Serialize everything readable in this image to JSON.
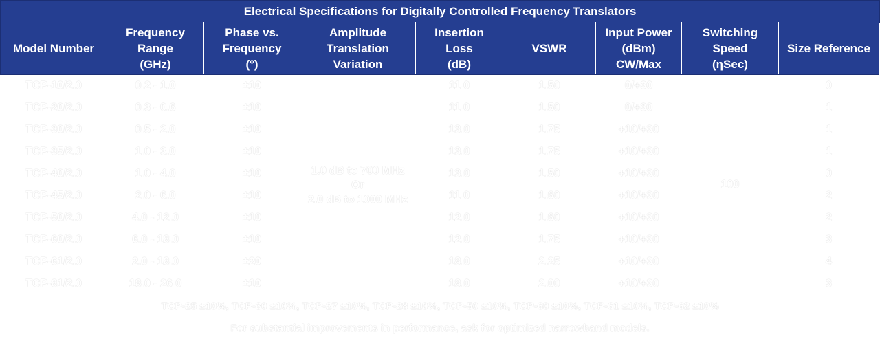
{
  "title": "Electrical Specifications for Digitally Controlled Frequency Translators",
  "headers": {
    "model": "Model Number",
    "freq_l1": "Frequency",
    "freq_l2": "Range",
    "freq_l3": "(GHz)",
    "phase_l1": "Phase vs.",
    "phase_l2": "Frequency",
    "phase_l3": "(°)",
    "amp_l1": "Amplitude",
    "amp_l2": "Translation",
    "amp_l3": "Variation",
    "ins_l1": "Insertion",
    "ins_l2": "Loss",
    "ins_l3": "(dB)",
    "vswr": "VSWR",
    "pwr_l1": "Input Power",
    "pwr_l2": "(dBm)",
    "pwr_l3": "CW/Max",
    "sw_l1": "Switching",
    "sw_l2": "Speed",
    "sw_l3": "(ηSec)",
    "size": "Size Reference"
  },
  "rows": [
    {
      "model": "TCP-10/2.0",
      "freq": "0.2 - 1.0",
      "phase": "±10",
      "loss": "11.0",
      "vswr": "1.50",
      "power": "0/+30",
      "size": "0"
    },
    {
      "model": "TCP-20/2.0",
      "freq": "0.3 - 0.6",
      "phase": "±10",
      "loss": "11.0",
      "vswr": "1.50",
      "power": "0/+30",
      "size": "1"
    },
    {
      "model": "TCP-30/2.0",
      "freq": "0.5 - 2.0",
      "phase": "±10",
      "loss": "13.0",
      "vswr": "1.75",
      "power": "+10/+30",
      "size": "1"
    },
    {
      "model": "TCP-35/2.0",
      "freq": "1.0 - 3.0",
      "phase": "±10",
      "loss": "13.0",
      "vswr": "1.75",
      "power": "+10/+30",
      "size": "1"
    },
    {
      "model": "TCP-40/2.0",
      "freq": "1.0 - 4.0",
      "phase": "±10",
      "loss": "13.0",
      "vswr": "1.50",
      "power": "+10/+30",
      "size": "0"
    },
    {
      "model": "TCP-45/2.0",
      "freq": "2.0 - 6.0",
      "phase": "±10",
      "loss": "11.0",
      "vswr": "1.60",
      "power": "+10/+30",
      "size": "2"
    },
    {
      "model": "TCP-50/2.0",
      "freq": "4.0 - 12.0",
      "phase": "±10",
      "loss": "12.0",
      "vswr": "1.60",
      "power": "+10/+30",
      "size": "2"
    },
    {
      "model": "TCP-60/2.0",
      "freq": "6.0 - 18.0",
      "phase": "±10",
      "loss": "12.0",
      "vswr": "1.75",
      "power": "+10/+30",
      "size": "3"
    },
    {
      "model": "TCP-61/2.0",
      "freq": "2.0 - 18.0",
      "phase": "±20",
      "loss": "18.0",
      "vswr": "2.25",
      "power": "+10/+30",
      "size": "4"
    },
    {
      "model": "TCP-81/2.0",
      "freq": "18.0 - 26.0",
      "phase": "±10",
      "loss": "18.0",
      "vswr": "2.00",
      "power": "+10/+30",
      "size": "3"
    }
  ],
  "merged": {
    "amp_l1": "1.0 dB to 700 MHz",
    "amp_l2": "Or",
    "amp_l3": "2.0 dB to 1000 MHz",
    "switching": "100"
  },
  "footnotes": {
    "line1": "TCP-25 ±10%, TCP-30 ±10%, TCP-27 ±10%, TCP-28 ±10%, TCP-50 ±10%, TCP-60 ±10%, TCP-61 ±10%, TCP-62 ±10%",
    "line2": "For substantial improvements in performance, ask for optimized narrowband models."
  }
}
